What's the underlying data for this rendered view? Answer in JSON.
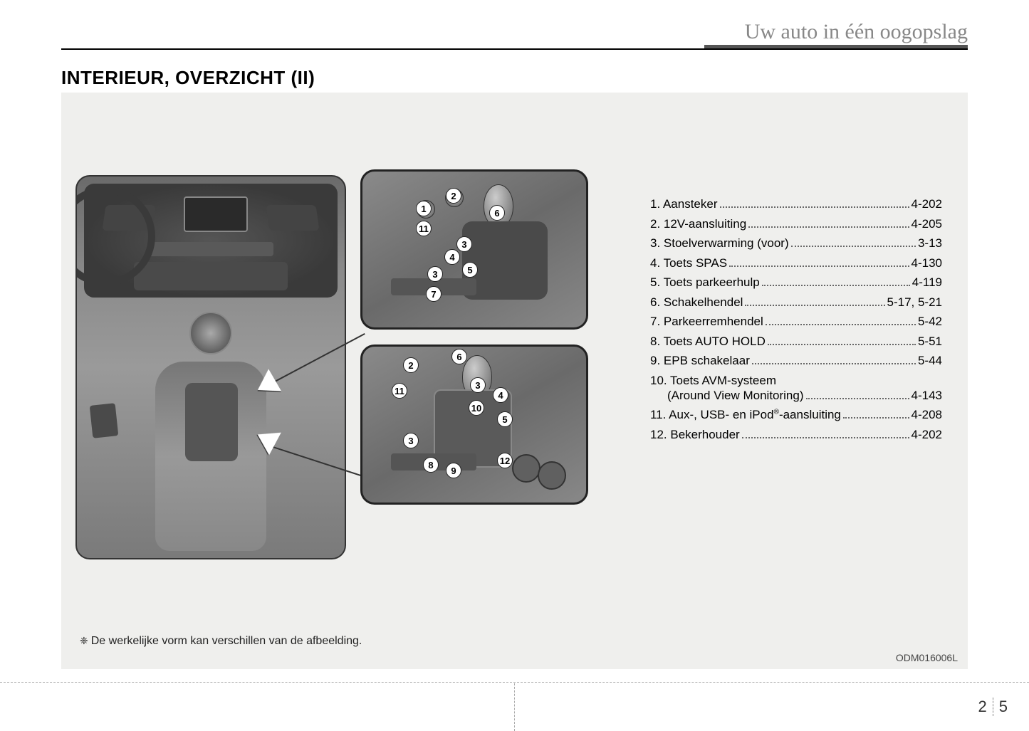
{
  "header": {
    "section_title": "Uw auto in één oogopslag"
  },
  "page": {
    "title": "INTERIEUR, OVERZICHT (II)",
    "footnote": "De werkelijke vorm kan verschillen van de afbeelding.",
    "image_code": "ODM016006L",
    "page_chapter": "2",
    "page_number": "5"
  },
  "callouts_top": {
    "n1": "1",
    "n2": "2",
    "n3a": "3",
    "n3b": "3",
    "n4": "4",
    "n5": "5",
    "n6": "6",
    "n7": "7",
    "n11": "11"
  },
  "callouts_bot": {
    "n2": "2",
    "n3a": "3",
    "n3b": "3",
    "n4": "4",
    "n5": "5",
    "n6": "6",
    "n8": "8",
    "n9": "9",
    "n10": "10",
    "n11": "11",
    "n12": "12"
  },
  "reference_list": [
    {
      "label": "1. Aansteker",
      "page": "4-202"
    },
    {
      "label": "2. 12V-aansluiting",
      "page": "4-205"
    },
    {
      "label": "3. Stoelverwarming (voor)",
      "page": "3-13"
    },
    {
      "label": "4. Toets SPAS",
      "page": "4-130"
    },
    {
      "label": "5. Toets parkeerhulp",
      "page": "4-119"
    },
    {
      "label": "6. Schakelhendel",
      "page": "5-17, 5-21"
    },
    {
      "label": "7. Parkeerremhendel",
      "page": "5-42"
    },
    {
      "label": "8. Toets AUTO HOLD",
      "page": "5-51"
    },
    {
      "label": "9. EPB schakelaar",
      "page": "5-44"
    },
    {
      "label": "10. Toets AVM-systeem",
      "label2": "(Around View Monitoring)",
      "page": "4-143",
      "wrap": true
    },
    {
      "label": "11. Aux-, USB- en iPod®-aansluiting",
      "page": "4-208",
      "sup": true
    },
    {
      "label": "12. Bekerhouder",
      "page": "4-202"
    }
  ]
}
